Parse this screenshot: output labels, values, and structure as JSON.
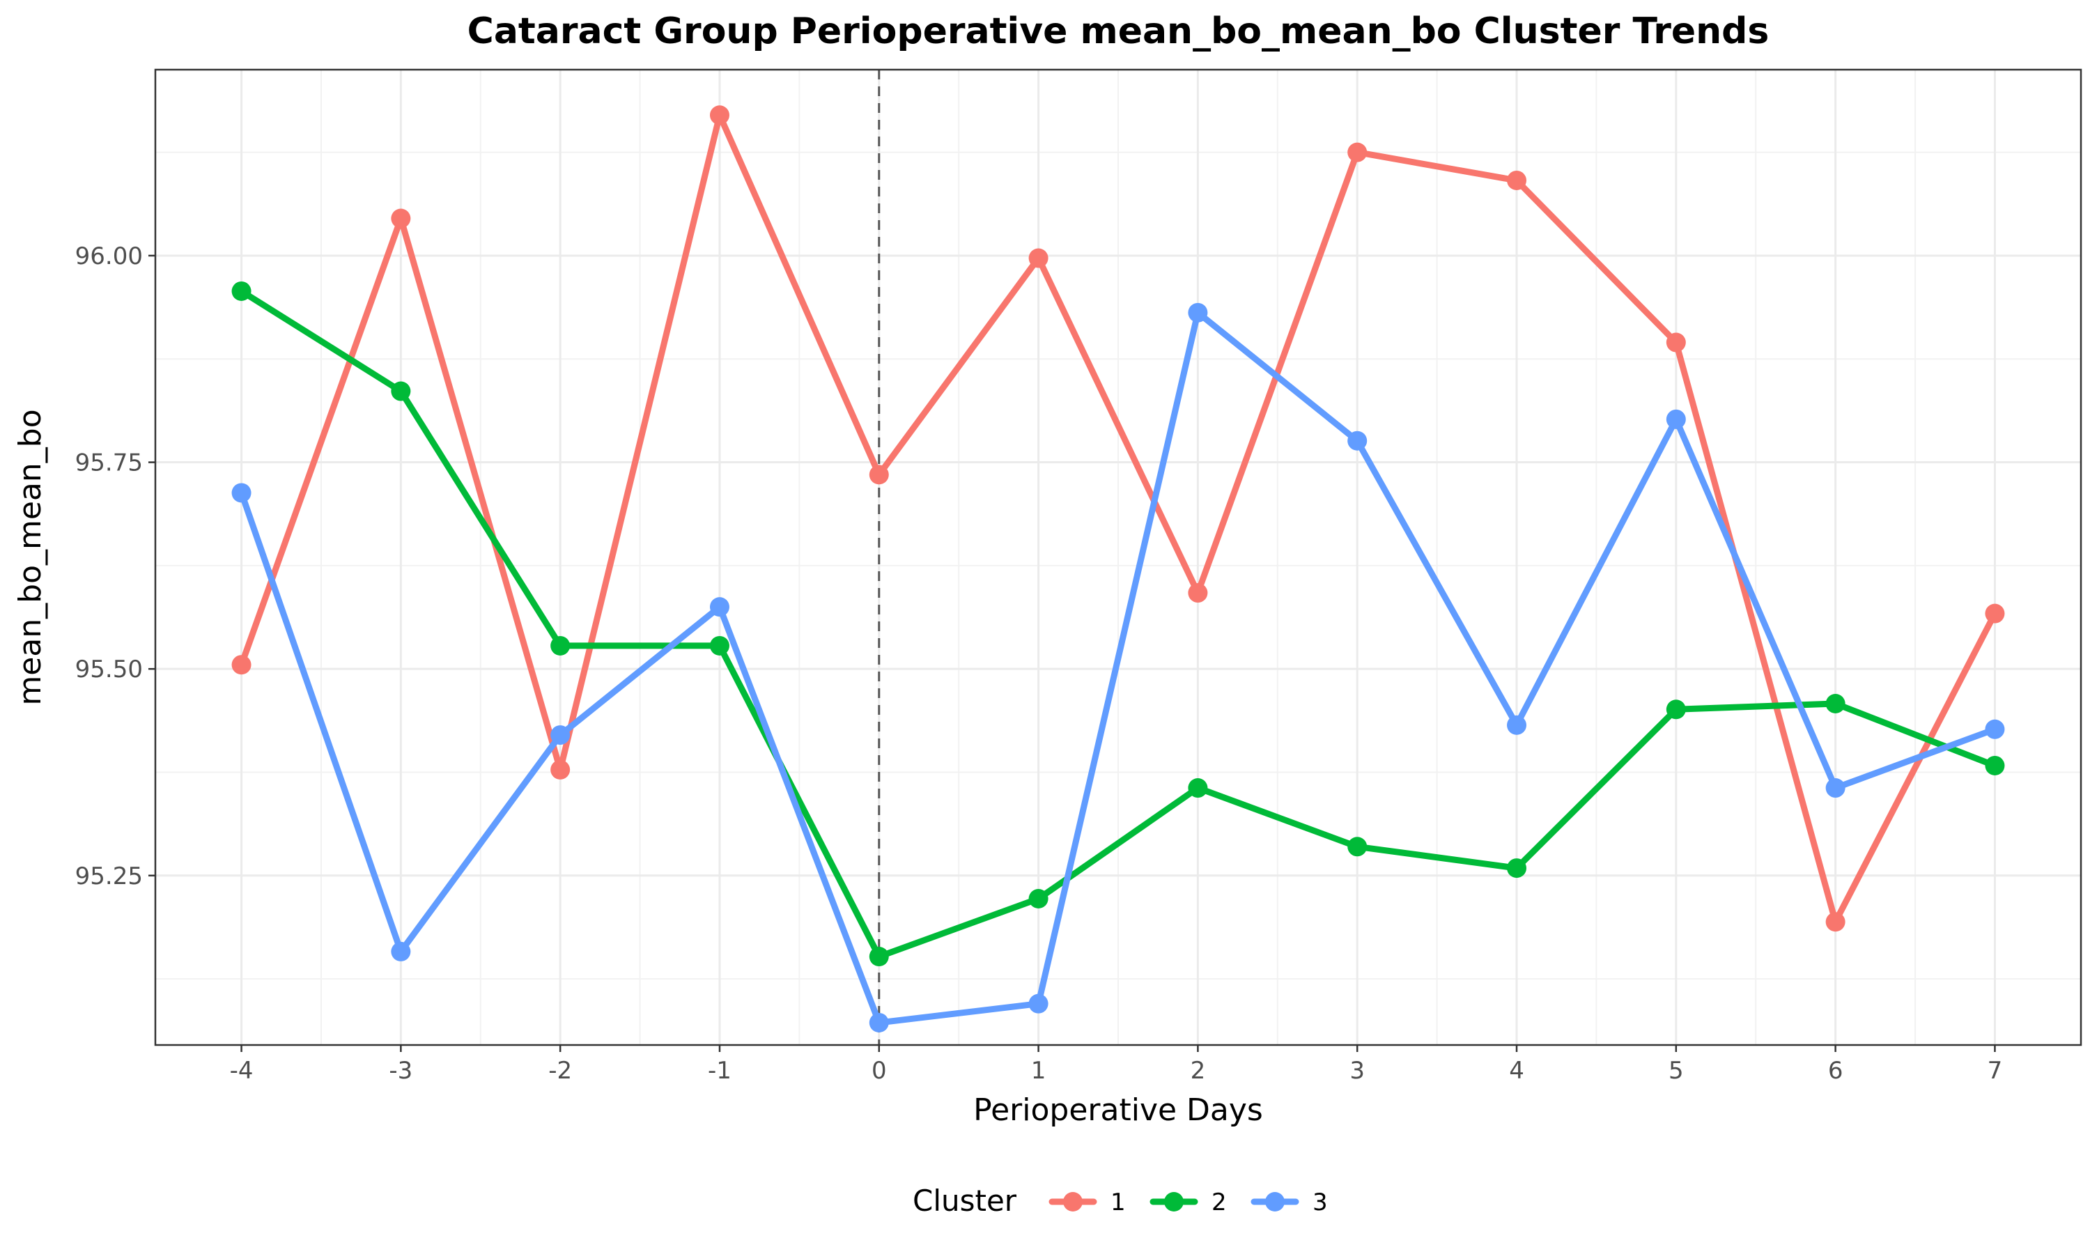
{
  "chart_data": {
    "type": "line",
    "title": "Cataract Group Perioperative mean_bo_mean_bo Cluster Trends",
    "xlabel": "Perioperative Days",
    "ylabel": "mean_bo_mean_bo",
    "x": [
      -4,
      -3,
      -2,
      -1,
      0,
      1,
      2,
      3,
      4,
      5,
      6,
      7
    ],
    "x_tick_labels": [
      "-4",
      "-3",
      "-2",
      "-1",
      "0",
      "1",
      "2",
      "3",
      "4",
      "5",
      "6",
      "7"
    ],
    "xlim": [
      -4.54,
      7.54
    ],
    "ylim": [
      95.045,
      96.225
    ],
    "y_ticks": [
      95.25,
      95.5,
      95.75,
      96.0
    ],
    "y_tick_labels": [
      "95.25",
      "95.50",
      "95.75",
      "96.00"
    ],
    "reference_line_x": 0,
    "grid": true,
    "legend_title": "Cluster",
    "legend_position": "bottom",
    "series": [
      {
        "name": "1",
        "color": "#F8766D",
        "values": [
          95.505,
          96.045,
          95.378,
          96.17,
          95.735,
          95.997,
          95.592,
          96.125,
          96.091,
          95.895,
          95.194,
          95.567
        ]
      },
      {
        "name": "2",
        "color": "#00BA38",
        "values": [
          95.957,
          95.836,
          95.528,
          95.528,
          95.152,
          95.222,
          95.356,
          95.285,
          95.259,
          95.451,
          95.458,
          95.383
        ]
      },
      {
        "name": "3",
        "color": "#619CFF",
        "values": [
          95.713,
          95.158,
          95.42,
          95.575,
          95.072,
          95.095,
          95.931,
          95.776,
          95.432,
          95.802,
          95.356,
          95.427
        ]
      }
    ]
  }
}
